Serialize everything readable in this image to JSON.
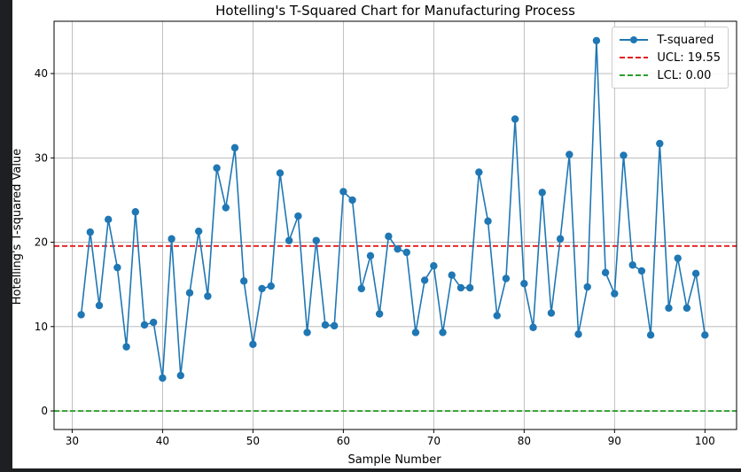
{
  "colors": {
    "series": "#1f77b4",
    "ucl": "#e41a1c",
    "lcl": "#2ca02c",
    "grid": "#b0b0b0",
    "background": "#ffffff",
    "outer": "#1e1f22"
  },
  "chart_data": {
    "type": "line",
    "title": "Hotelling's T-Squared Chart for Manufacturing Process",
    "xlabel": "Sample Number",
    "ylabel": "Hotelling's T-squared Value",
    "xlim": [
      28,
      103.5
    ],
    "ylim": [
      -2.2,
      46.2
    ],
    "xticks": [
      30,
      40,
      50,
      60,
      70,
      80,
      90,
      100
    ],
    "yticks": [
      0,
      10,
      20,
      30,
      40
    ],
    "grid": true,
    "legend_position": "top-right",
    "series": [
      {
        "name": "T-squared",
        "marker": "circle",
        "x": [
          31,
          32,
          33,
          34,
          35,
          36,
          37,
          38,
          39,
          40,
          41,
          42,
          43,
          44,
          45,
          46,
          47,
          48,
          49,
          50,
          51,
          52,
          53,
          54,
          55,
          56,
          57,
          58,
          59,
          60,
          61,
          62,
          63,
          64,
          65,
          66,
          67,
          68,
          69,
          70,
          71,
          72,
          73,
          74,
          75,
          76,
          77,
          78,
          79,
          80,
          81,
          82,
          83,
          84,
          85,
          86,
          87,
          88,
          89,
          90,
          91,
          92,
          93,
          94,
          95,
          96,
          97,
          98,
          99,
          100
        ],
        "y": [
          11.4,
          21.2,
          12.5,
          22.7,
          17.0,
          7.6,
          23.6,
          10.2,
          10.5,
          3.9,
          20.4,
          4.2,
          14.0,
          21.3,
          13.6,
          28.8,
          24.1,
          31.2,
          15.4,
          7.9,
          14.5,
          14.8,
          28.2,
          20.2,
          23.1,
          9.3,
          20.2,
          10.2,
          10.1,
          26.0,
          25.0,
          14.5,
          18.4,
          11.5,
          20.7,
          19.2,
          18.8,
          9.3,
          15.5,
          17.2,
          9.3,
          16.1,
          14.6,
          14.6,
          28.3,
          22.5,
          11.3,
          15.7,
          34.6,
          15.1,
          9.9,
          25.9,
          11.6,
          20.4,
          30.4,
          9.1,
          14.7,
          43.9,
          16.4,
          13.9,
          30.3,
          17.3,
          16.6,
          9.0,
          31.7,
          12.2,
          18.1,
          12.2,
          16.3,
          9.0
        ]
      }
    ],
    "hlines": [
      {
        "name": "UCL: 19.55",
        "value": 19.55,
        "style": "dashed",
        "color": "#e41a1c"
      },
      {
        "name": "LCL: 0.00",
        "value": 0.0,
        "style": "dashed",
        "color": "#2ca02c"
      }
    ]
  }
}
